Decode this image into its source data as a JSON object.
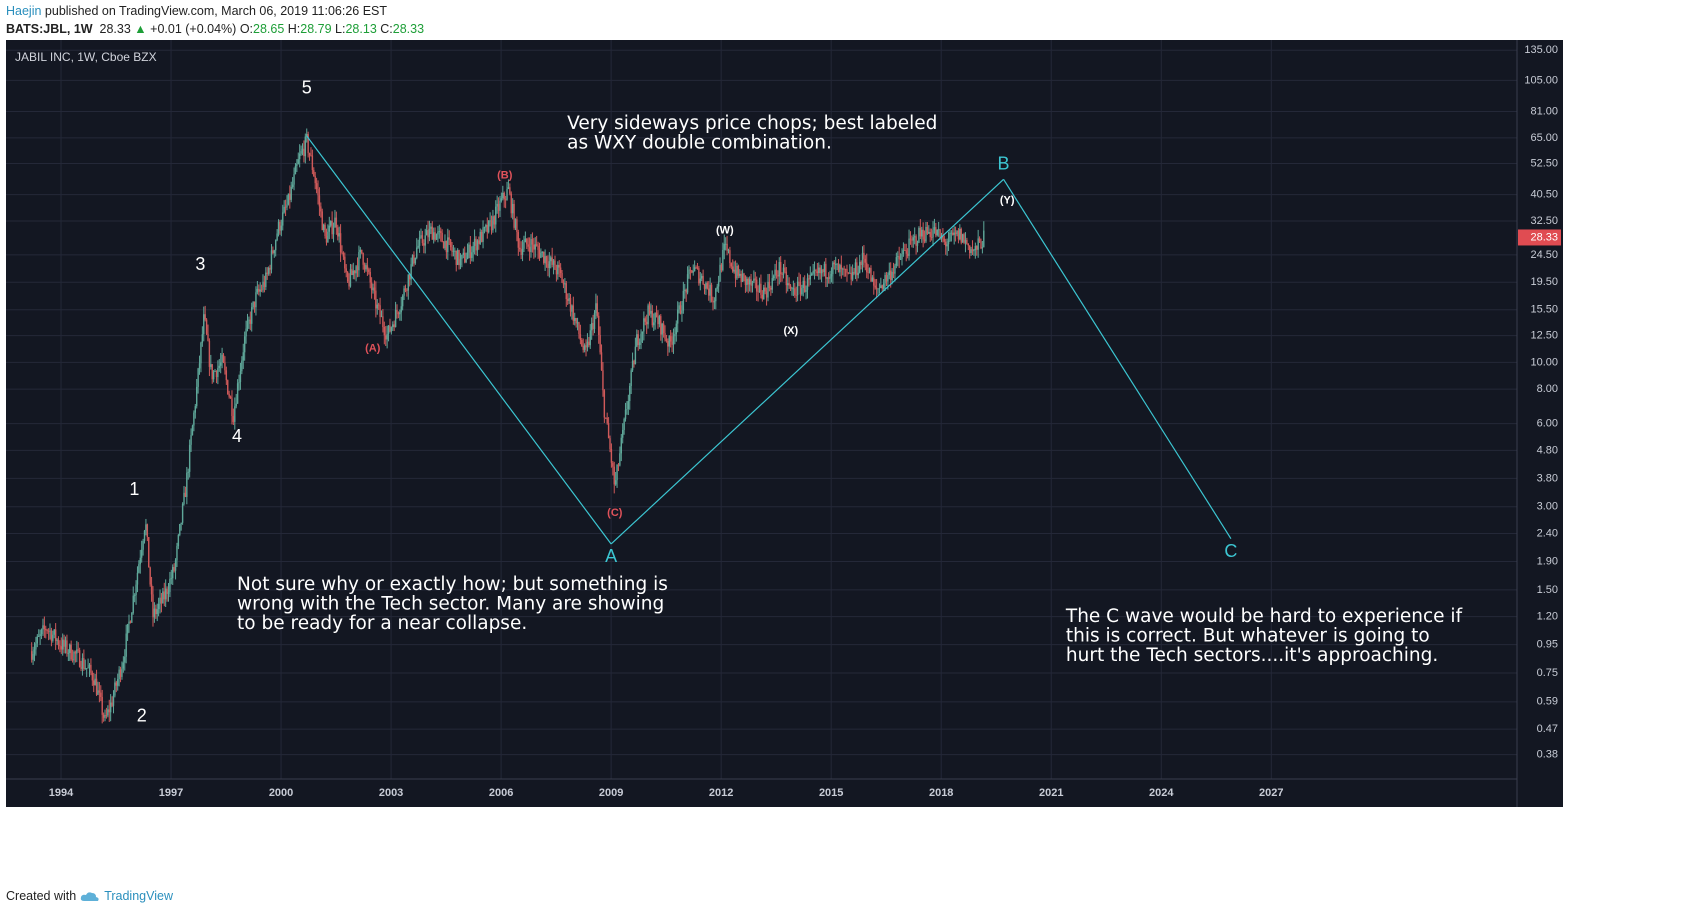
{
  "header": {
    "author": "Haejin",
    "published_text": " published on TradingView.com, March 06, 2019 11:06:26 EST"
  },
  "ohlc_bar": {
    "symbol": "BATS:JBL, 1W",
    "last": "28.33",
    "arrow": "▲",
    "change": "+0.01 (+0.04%)",
    "o_label": "O:",
    "o": "28.65",
    "h_label": "H:",
    "h": "28.79",
    "l_label": "L:",
    "l": "28.13",
    "c_label": "C:",
    "c": "28.33"
  },
  "footer": {
    "created_with": "Created with",
    "brand": "TradingView"
  },
  "colors": {
    "background": "#131722",
    "wave_line": "#3cc6d2",
    "candle_up": "#5fa89a",
    "candle_down": "#d05a5a",
    "label_white": "#ffffff",
    "label_red": "#e0525a",
    "price_tag": "#e04c52"
  },
  "chart_data": {
    "type": "line",
    "title": "JABIL INC, 1W, Cboe BZX",
    "y_scale": "log",
    "ylim": [
      0.31,
      147
    ],
    "xlim": [
      1992.5,
      2033.7
    ],
    "x_ticks": [
      1994,
      1997,
      2000,
      2003,
      2006,
      2009,
      2012,
      2015,
      2018,
      2021,
      2024,
      2027
    ],
    "x_tick_labels": [
      "1994",
      "1997",
      "2000",
      "2003",
      "2006",
      "2009",
      "2012",
      "2015",
      "2018",
      "2021",
      "2024",
      "2027"
    ],
    "y_ticks": [
      135.0,
      105.0,
      81.0,
      65.0,
      52.5,
      40.5,
      32.5,
      24.5,
      19.5,
      15.5,
      12.5,
      10.0,
      8.0,
      6.0,
      4.8,
      3.8,
      3.0,
      2.4,
      1.9,
      1.5,
      1.2,
      0.95,
      0.75,
      0.59,
      0.47,
      0.38
    ],
    "y_tick_labels": [
      "135.00",
      "105.00",
      "81.00",
      "65.00",
      "52.50",
      "40.50",
      "32.50",
      "24.50",
      "19.50",
      "15.50",
      "12.50",
      "10.00",
      "8.00",
      "6.00",
      "4.80",
      "3.80",
      "3.00",
      "2.40",
      "1.90",
      "1.50",
      "1.20",
      "0.95",
      "0.75",
      "0.59",
      "0.47",
      "0.38"
    ],
    "last_price_tag": "28.33",
    "series": [
      {
        "name": "JBL weekly price (approx)",
        "points": [
          [
            1993.2,
            0.9
          ],
          [
            1993.6,
            1.1
          ],
          [
            1994.0,
            0.95
          ],
          [
            1994.5,
            0.85
          ],
          [
            1994.9,
            0.72
          ],
          [
            1995.2,
            0.5
          ],
          [
            1995.4,
            0.6
          ],
          [
            1995.7,
            0.85
          ],
          [
            1996.1,
            1.8
          ],
          [
            1996.3,
            2.7
          ],
          [
            1996.5,
            1.2
          ],
          [
            1996.8,
            1.4
          ],
          [
            1997.1,
            1.8
          ],
          [
            1997.4,
            3.5
          ],
          [
            1997.7,
            8.0
          ],
          [
            1997.9,
            14.5
          ],
          [
            1998.1,
            9.0
          ],
          [
            1998.4,
            10.0
          ],
          [
            1998.7,
            6.5
          ],
          [
            1999.0,
            12.0
          ],
          [
            1999.3,
            17.0
          ],
          [
            1999.6,
            20.0
          ],
          [
            1999.9,
            30.0
          ],
          [
            2000.2,
            38.0
          ],
          [
            2000.5,
            55.0
          ],
          [
            2000.7,
            63.0
          ],
          [
            2000.9,
            48.0
          ],
          [
            2001.2,
            28.0
          ],
          [
            2001.5,
            33.0
          ],
          [
            2001.8,
            19.0
          ],
          [
            2002.2,
            25.0
          ],
          [
            2002.6,
            16.0
          ],
          [
            2002.9,
            12.5
          ],
          [
            2003.3,
            17.0
          ],
          [
            2003.7,
            26.0
          ],
          [
            2004.1,
            30.0
          ],
          [
            2004.5,
            27.0
          ],
          [
            2004.9,
            23.0
          ],
          [
            2005.3,
            27.0
          ],
          [
            2005.7,
            31.0
          ],
          [
            2006.0,
            38.0
          ],
          [
            2006.2,
            42.0
          ],
          [
            2006.5,
            26.0
          ],
          [
            2006.8,
            27.0
          ],
          [
            2007.2,
            24.0
          ],
          [
            2007.6,
            21.0
          ],
          [
            2007.9,
            16.0
          ],
          [
            2008.3,
            10.5
          ],
          [
            2008.6,
            16.0
          ],
          [
            2008.8,
            7.0
          ],
          [
            2009.0,
            4.5
          ],
          [
            2009.1,
            3.5
          ],
          [
            2009.4,
            6.5
          ],
          [
            2009.7,
            12.0
          ],
          [
            2010.0,
            15.0
          ],
          [
            2010.3,
            14.0
          ],
          [
            2010.6,
            11.5
          ],
          [
            2010.9,
            16.0
          ],
          [
            2011.2,
            22.0
          ],
          [
            2011.5,
            20.0
          ],
          [
            2011.8,
            17.0
          ],
          [
            2012.1,
            26.0
          ],
          [
            2012.4,
            21.0
          ],
          [
            2012.8,
            19.0
          ],
          [
            2013.2,
            18.0
          ],
          [
            2013.6,
            22.0
          ],
          [
            2013.9,
            18.0
          ],
          [
            2014.3,
            19.0
          ],
          [
            2014.7,
            21.0
          ],
          [
            2015.1,
            22.0
          ],
          [
            2015.5,
            20.0
          ],
          [
            2015.9,
            24.0
          ],
          [
            2016.2,
            18.0
          ],
          [
            2016.6,
            21.0
          ],
          [
            2017.0,
            25.0
          ],
          [
            2017.4,
            29.0
          ],
          [
            2017.8,
            30.0
          ],
          [
            2018.1,
            27.0
          ],
          [
            2018.5,
            29.0
          ],
          [
            2018.9,
            25.0
          ],
          [
            2019.1,
            27.5
          ],
          [
            2019.18,
            28.33
          ]
        ]
      },
      {
        "name": "Elliott wave projection",
        "points": [
          [
            2000.7,
            66.0
          ],
          [
            2009.0,
            2.2
          ],
          [
            2019.7,
            46.0
          ],
          [
            2025.9,
            2.3
          ]
        ]
      }
    ],
    "wave_labels": [
      {
        "text": "1",
        "x": 1996.0,
        "y": 3.45,
        "color": "white",
        "size": "large"
      },
      {
        "text": "2",
        "x": 1996.2,
        "y": 0.52,
        "color": "white",
        "size": "large"
      },
      {
        "text": "3",
        "x": 1997.8,
        "y": 22.5,
        "color": "white",
        "size": "large"
      },
      {
        "text": "4",
        "x": 1998.8,
        "y": 5.35,
        "color": "white",
        "size": "large"
      },
      {
        "text": "5",
        "x": 2000.7,
        "y": 98.0,
        "color": "white",
        "size": "large"
      },
      {
        "text": "A",
        "x": 2009.0,
        "y": 1.97,
        "color": "cyan",
        "size": "large"
      },
      {
        "text": "B",
        "x": 2019.7,
        "y": 52.0,
        "color": "cyan",
        "size": "large"
      },
      {
        "text": "C",
        "x": 2025.9,
        "y": 2.05,
        "color": "cyan",
        "size": "large"
      },
      {
        "text": "(A)",
        "x": 2002.5,
        "y": 11.2,
        "color": "red",
        "size": "small"
      },
      {
        "text": "(B)",
        "x": 2006.1,
        "y": 47.5,
        "color": "red",
        "size": "small"
      },
      {
        "text": "(C)",
        "x": 2009.1,
        "y": 2.85,
        "color": "red",
        "size": "small"
      },
      {
        "text": "(W)",
        "x": 2012.1,
        "y": 30.0,
        "color": "white",
        "size": "small"
      },
      {
        "text": "(X)",
        "x": 2013.9,
        "y": 13.0,
        "color": "white",
        "size": "small"
      },
      {
        "text": "(Y)",
        "x": 2019.8,
        "y": 38.5,
        "color": "white",
        "size": "small"
      }
    ],
    "annotations": [
      {
        "lines": [
          "Very sideways price chops; best labeled",
          "as WXY double combination."
        ],
        "x": 2007.8,
        "y": 70.0
      },
      {
        "lines": [
          "Not sure why or exactly how; but something is",
          "wrong with the Tech sector. Many are showing",
          "to be ready for a near collapse."
        ],
        "x": 1998.8,
        "y": 1.5
      },
      {
        "lines": [
          "The C wave would be hard to experience if",
          "this is correct. But whatever is going to",
          "hurt the Tech sectors....it's approaching."
        ],
        "x": 2021.4,
        "y": 1.15
      }
    ]
  }
}
